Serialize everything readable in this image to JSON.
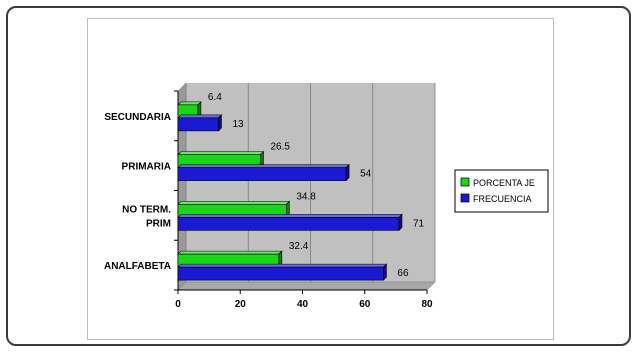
{
  "chart_data": {
    "type": "bar",
    "orientation": "horizontal",
    "categories": [
      "SECUNDARIA",
      "PRIMARIA",
      "NO TERM.\nPRIM",
      "ANALFABETA"
    ],
    "series": [
      {
        "name": "PORCENTAJE",
        "color": "#19d619",
        "values": [
          6.4,
          26.5,
          34.8,
          32.4
        ]
      },
      {
        "name": "FRECUENCIA",
        "color": "#1a1ad2",
        "values": [
          13,
          54,
          71,
          66
        ]
      }
    ],
    "xlim": [
      0,
      80
    ],
    "xticks": [
      0,
      20,
      40,
      60,
      80
    ],
    "legend": [
      "PORCENTA JE",
      "FRECUENCIA"
    ],
    "legend_position": "right",
    "grid": true
  }
}
